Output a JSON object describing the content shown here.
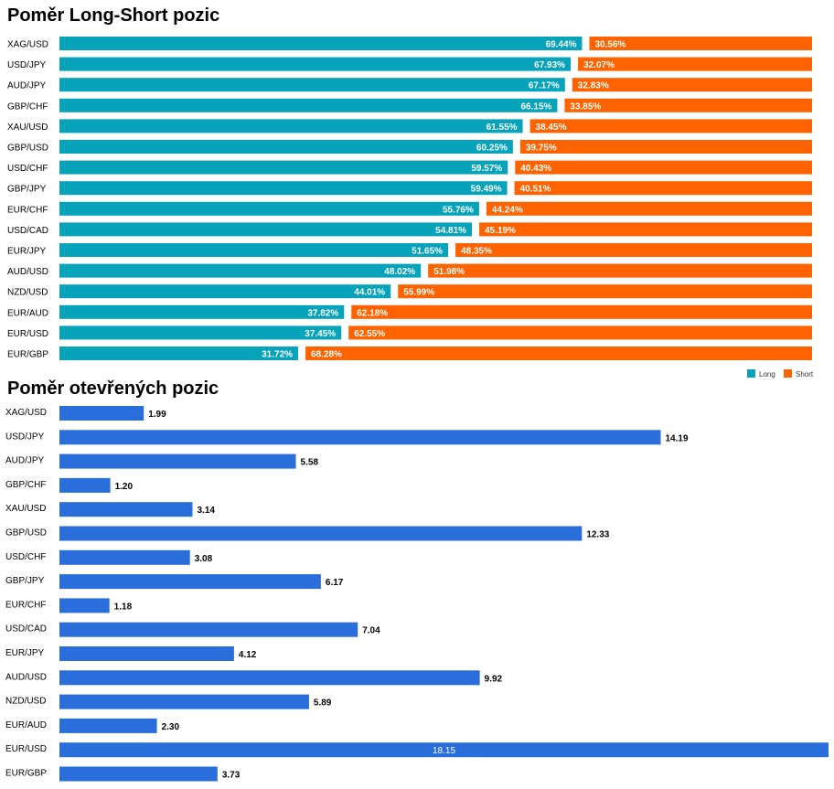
{
  "chart_data": [
    {
      "type": "bar",
      "orientation": "horizontal",
      "stacked": true,
      "title": "Poměr Long-Short pozic",
      "categories": [
        "XAG/USD",
        "USD/JPY",
        "AUD/JPY",
        "GBP/CHF",
        "XAU/USD",
        "GBP/USD",
        "USD/CHF",
        "GBP/JPY",
        "EUR/CHF",
        "USD/CAD",
        "EUR/JPY",
        "AUD/USD",
        "NZD/USD",
        "EUR/AUD",
        "EUR/USD",
        "EUR/GBP"
      ],
      "series": [
        {
          "name": "Long",
          "color": "#06a3bb",
          "values": [
            69.44,
            67.93,
            67.17,
            66.15,
            61.55,
            60.25,
            59.57,
            59.49,
            55.76,
            54.81,
            51.65,
            48.02,
            44.01,
            37.82,
            37.45,
            31.72
          ],
          "labels": [
            "69.44%",
            "67.93%",
            "67.17%",
            "66.15%",
            "61.55%",
            "60.25%",
            "59.57%",
            "59.49%",
            "55.76%",
            "54.81%",
            "51.65%",
            "48.02%",
            "44.01%",
            "37.82%",
            "37.45%",
            "31.72%"
          ]
        },
        {
          "name": "Short",
          "color": "#ff6300",
          "values": [
            30.56,
            32.07,
            32.83,
            33.85,
            38.45,
            39.75,
            40.43,
            40.51,
            44.24,
            45.19,
            48.35,
            51.98,
            55.99,
            62.18,
            62.55,
            68.28
          ],
          "labels": [
            "30.56%",
            "32.07%",
            "32.83%",
            "33.85%",
            "38.45%",
            "39.75%",
            "40.43%",
            "40.51%",
            "44.24%",
            "45.19%",
            "48.35%",
            "51.98%",
            "55.99%",
            "62.18%",
            "62.55%",
            "68.28%"
          ]
        }
      ],
      "xlim": [
        0,
        100
      ],
      "legend": "bottom-right"
    },
    {
      "type": "bar",
      "orientation": "horizontal",
      "title": "Poměr otevřených pozic",
      "categories": [
        "XAG/USD",
        "USD/JPY",
        "AUD/JPY",
        "GBP/CHF",
        "XAU/USD",
        "GBP/USD",
        "USD/CHF",
        "GBP/JPY",
        "EUR/CHF",
        "USD/CAD",
        "EUR/JPY",
        "AUD/USD",
        "NZD/USD",
        "EUR/AUD",
        "EUR/USD",
        "EUR/GBP"
      ],
      "values": [
        1.99,
        14.19,
        5.58,
        1.2,
        3.14,
        12.33,
        3.08,
        6.17,
        1.18,
        7.04,
        4.12,
        9.92,
        5.89,
        2.3,
        18.15,
        3.73
      ],
      "labels": [
        "1.99",
        "14.19",
        "5.58",
        "1.20",
        "3.14",
        "12.33",
        "3.08",
        "6.17",
        "1.18",
        "7.04",
        "4.12",
        "9.92",
        "5.89",
        "2.30",
        "18.15",
        "3.73"
      ],
      "color": "#2a6edb",
      "xlim": [
        0,
        18.15
      ]
    }
  ]
}
